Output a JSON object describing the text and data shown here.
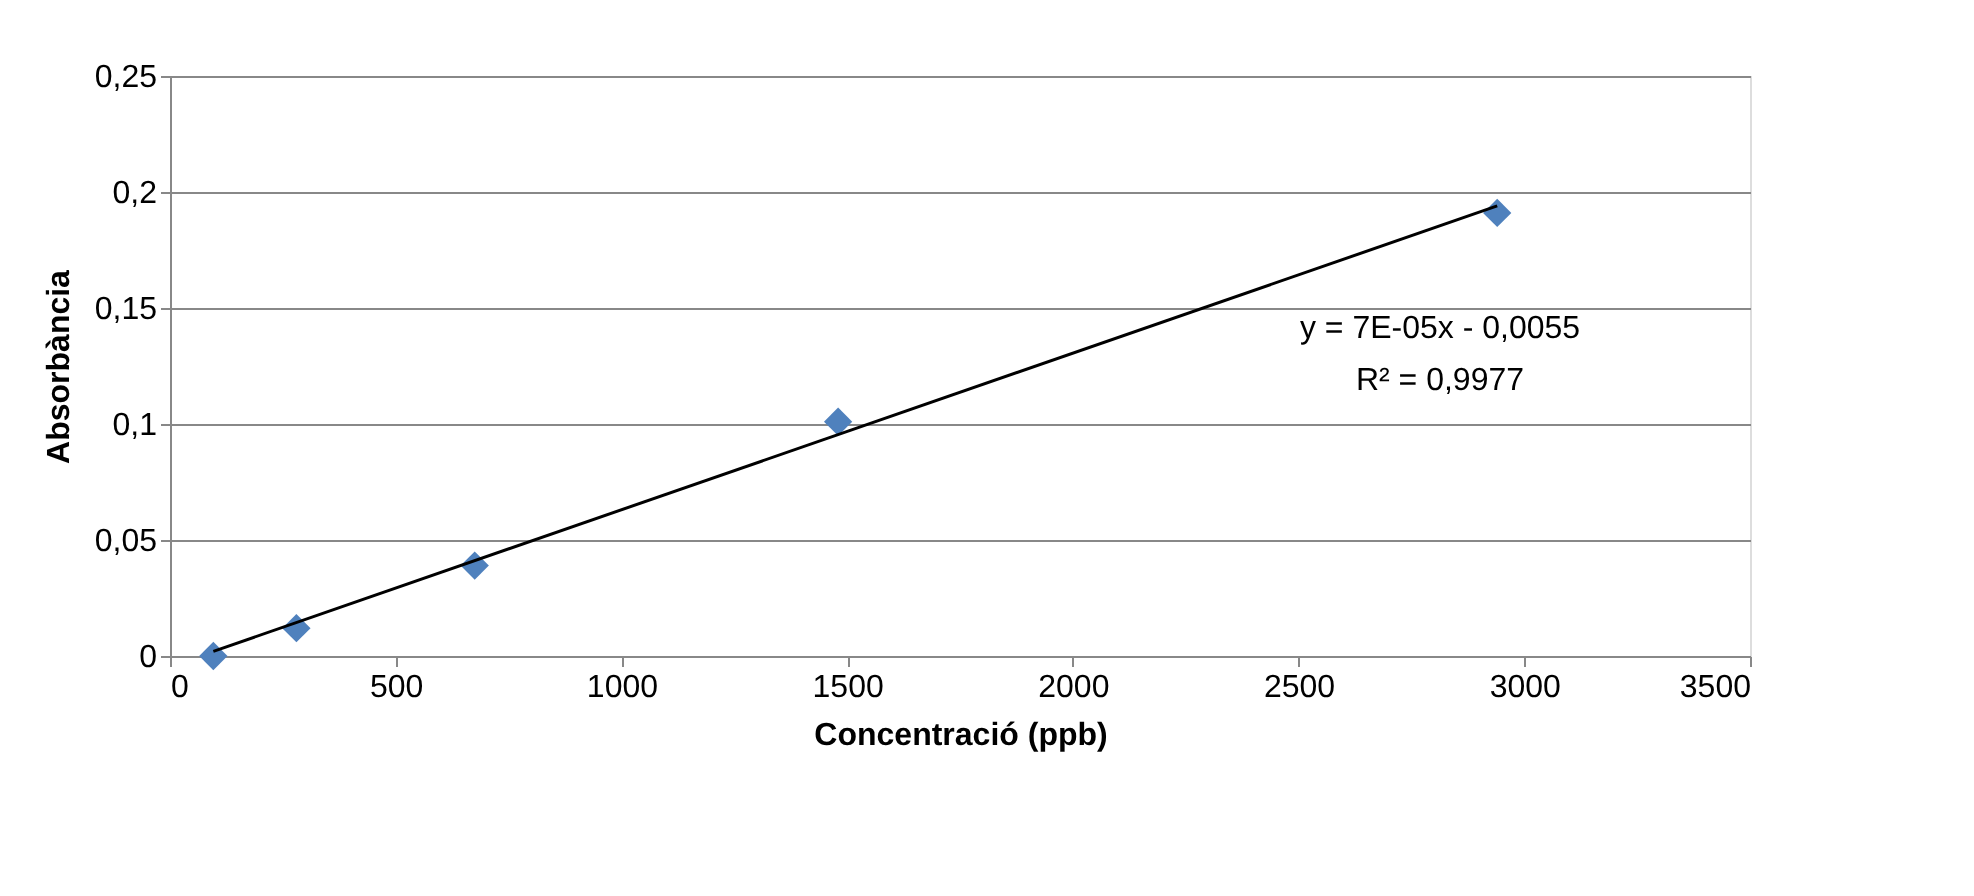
{
  "chart_data": {
    "type": "scatter",
    "xlabel": "Concentració (ppb)",
    "ylabel": "Absorbància",
    "xlim": [
      0,
      3500
    ],
    "xticks": [
      0,
      500,
      1000,
      1500,
      2000,
      2500,
      3000,
      3500
    ],
    "ylim": [
      0,
      0.25
    ],
    "yticks": [
      {
        "value": 0,
        "label": "0"
      },
      {
        "value": 0.05,
        "label": "0,05"
      },
      {
        "value": 0.1,
        "label": "0,1"
      },
      {
        "value": 0.15,
        "label": "0,15"
      },
      {
        "value": 0.2,
        "label": "0,2"
      },
      {
        "value": 0.25,
        "label": "0,25"
      }
    ],
    "grid": "y",
    "series": [
      {
        "type": "scatter",
        "color": "#4f81bd",
        "marker": "diamond",
        "x": [
          96,
          280,
          675,
          1480,
          2940
        ],
        "values": [
          0,
          0.012,
          0.039,
          0.101,
          0.191
        ]
      },
      {
        "type": "line",
        "color": "#000000",
        "marker": "none",
        "line_style": "solid",
        "x": [
          96,
          2940
        ],
        "values": [
          0.002,
          0.194
        ]
      }
    ],
    "annotations": [
      "y = 7E-05x - 0,0055",
      "R² = 0,9977"
    ]
  }
}
